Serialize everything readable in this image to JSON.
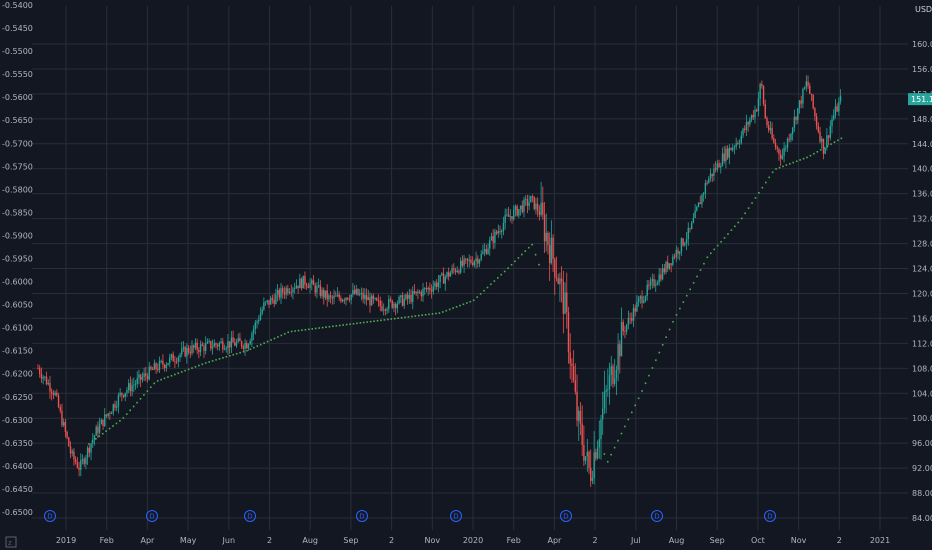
{
  "chart_data": {
    "type": "candlestick",
    "left_axis": {
      "ticks": [
        "-0.5400",
        "-0.5450",
        "-0.5500",
        "-0.5550",
        "-0.5600",
        "-0.5650",
        "-0.5700",
        "-0.5750",
        "-0.5800",
        "-0.5850",
        "-0.5900",
        "-0.5950",
        "-0.6000",
        "-0.6050",
        "-0.6100",
        "-0.6150",
        "-0.6200",
        "-0.6250",
        "-0.6300",
        "-0.6350",
        "-0.6400",
        "-0.6450",
        "-0.6500"
      ],
      "range": [
        -0.54,
        -0.65
      ]
    },
    "right_axis": {
      "currency": "USD",
      "ticks": [
        "160.00",
        "156.00",
        "152.00",
        "148.00",
        "144.00",
        "140.00",
        "136.00",
        "132.00",
        "128.00",
        "124.00",
        "120.00",
        "116.00",
        "112.00",
        "108.00",
        "104.00",
        "100.00",
        "96.00",
        "92.00",
        "88.00",
        "84.00"
      ],
      "ylim": [
        84,
        160
      ],
      "last_price": "151.16",
      "last_price_value": 151.16
    },
    "x_axis": {
      "ticks": [
        "2019",
        "Feb",
        "Apr",
        "May",
        "Jun",
        "2",
        "Aug",
        "Sep",
        "2",
        "Nov",
        "2020",
        "Feb",
        "Apr",
        "2",
        "Jul",
        "Aug",
        "Sep",
        "Oct",
        "Nov",
        "2",
        "2021"
      ]
    },
    "dividend_marker_label": "D",
    "dividend_markers": 8,
    "series": [
      {
        "name": "price",
        "approx_path": [
          {
            "t": 0.0,
            "v": 108
          },
          {
            "t": 0.02,
            "v": 104
          },
          {
            "t": 0.04,
            "v": 94
          },
          {
            "t": 0.05,
            "v": 92
          },
          {
            "t": 0.07,
            "v": 98
          },
          {
            "t": 0.1,
            "v": 104
          },
          {
            "t": 0.14,
            "v": 108
          },
          {
            "t": 0.18,
            "v": 111
          },
          {
            "t": 0.22,
            "v": 112
          },
          {
            "t": 0.25,
            "v": 112
          },
          {
            "t": 0.27,
            "v": 118
          },
          {
            "t": 0.3,
            "v": 121
          },
          {
            "t": 0.32,
            "v": 122
          },
          {
            "t": 0.35,
            "v": 119
          },
          {
            "t": 0.38,
            "v": 120
          },
          {
            "t": 0.41,
            "v": 118
          },
          {
            "t": 0.44,
            "v": 119
          },
          {
            "t": 0.47,
            "v": 121
          },
          {
            "t": 0.5,
            "v": 124
          },
          {
            "t": 0.53,
            "v": 126
          },
          {
            "t": 0.56,
            "v": 132
          },
          {
            "t": 0.59,
            "v": 135
          },
          {
            "t": 0.6,
            "v": 133
          },
          {
            "t": 0.62,
            "v": 124
          },
          {
            "t": 0.63,
            "v": 118
          },
          {
            "t": 0.645,
            "v": 100
          },
          {
            "t": 0.66,
            "v": 91
          },
          {
            "t": 0.68,
            "v": 104
          },
          {
            "t": 0.7,
            "v": 114
          },
          {
            "t": 0.72,
            "v": 119
          },
          {
            "t": 0.75,
            "v": 124
          },
          {
            "t": 0.78,
            "v": 130
          },
          {
            "t": 0.8,
            "v": 138
          },
          {
            "t": 0.82,
            "v": 142
          },
          {
            "t": 0.84,
            "v": 145
          },
          {
            "t": 0.86,
            "v": 150
          },
          {
            "t": 0.865,
            "v": 154
          },
          {
            "t": 0.87,
            "v": 148
          },
          {
            "t": 0.88,
            "v": 144
          },
          {
            "t": 0.89,
            "v": 142
          },
          {
            "t": 0.9,
            "v": 146
          },
          {
            "t": 0.91,
            "v": 150
          },
          {
            "t": 0.92,
            "v": 154
          },
          {
            "t": 0.93,
            "v": 148
          },
          {
            "t": 0.94,
            "v": 143
          },
          {
            "t": 0.95,
            "v": 148
          },
          {
            "t": 0.96,
            "v": 151
          }
        ]
      },
      {
        "name": "trailing-stop",
        "approx_path": [
          {
            "t": 0.06,
            "v": 96
          },
          {
            "t": 0.1,
            "v": 100
          },
          {
            "t": 0.14,
            "v": 106
          },
          {
            "t": 0.2,
            "v": 109
          },
          {
            "t": 0.25,
            "v": 111
          },
          {
            "t": 0.3,
            "v": 114
          },
          {
            "t": 0.36,
            "v": 115
          },
          {
            "t": 0.42,
            "v": 116
          },
          {
            "t": 0.48,
            "v": 117
          },
          {
            "t": 0.52,
            "v": 119
          },
          {
            "t": 0.56,
            "v": 124
          },
          {
            "t": 0.59,
            "v": 128
          },
          {
            "t": 0.68,
            "v": 93
          },
          {
            "t": 0.72,
            "v": 104
          },
          {
            "t": 0.76,
            "v": 116
          },
          {
            "t": 0.8,
            "v": 126
          },
          {
            "t": 0.84,
            "v": 132
          },
          {
            "t": 0.88,
            "v": 140
          },
          {
            "t": 0.92,
            "v": 142
          },
          {
            "t": 0.96,
            "v": 145
          }
        ]
      }
    ],
    "colors": {
      "background": "#131722",
      "grid": "#2a2e39",
      "up": "#26a69a",
      "down": "#ef5350",
      "stop_line": "#4caf50",
      "last_price_tag": "#26a69a",
      "dividend": "#2962ff"
    }
  }
}
